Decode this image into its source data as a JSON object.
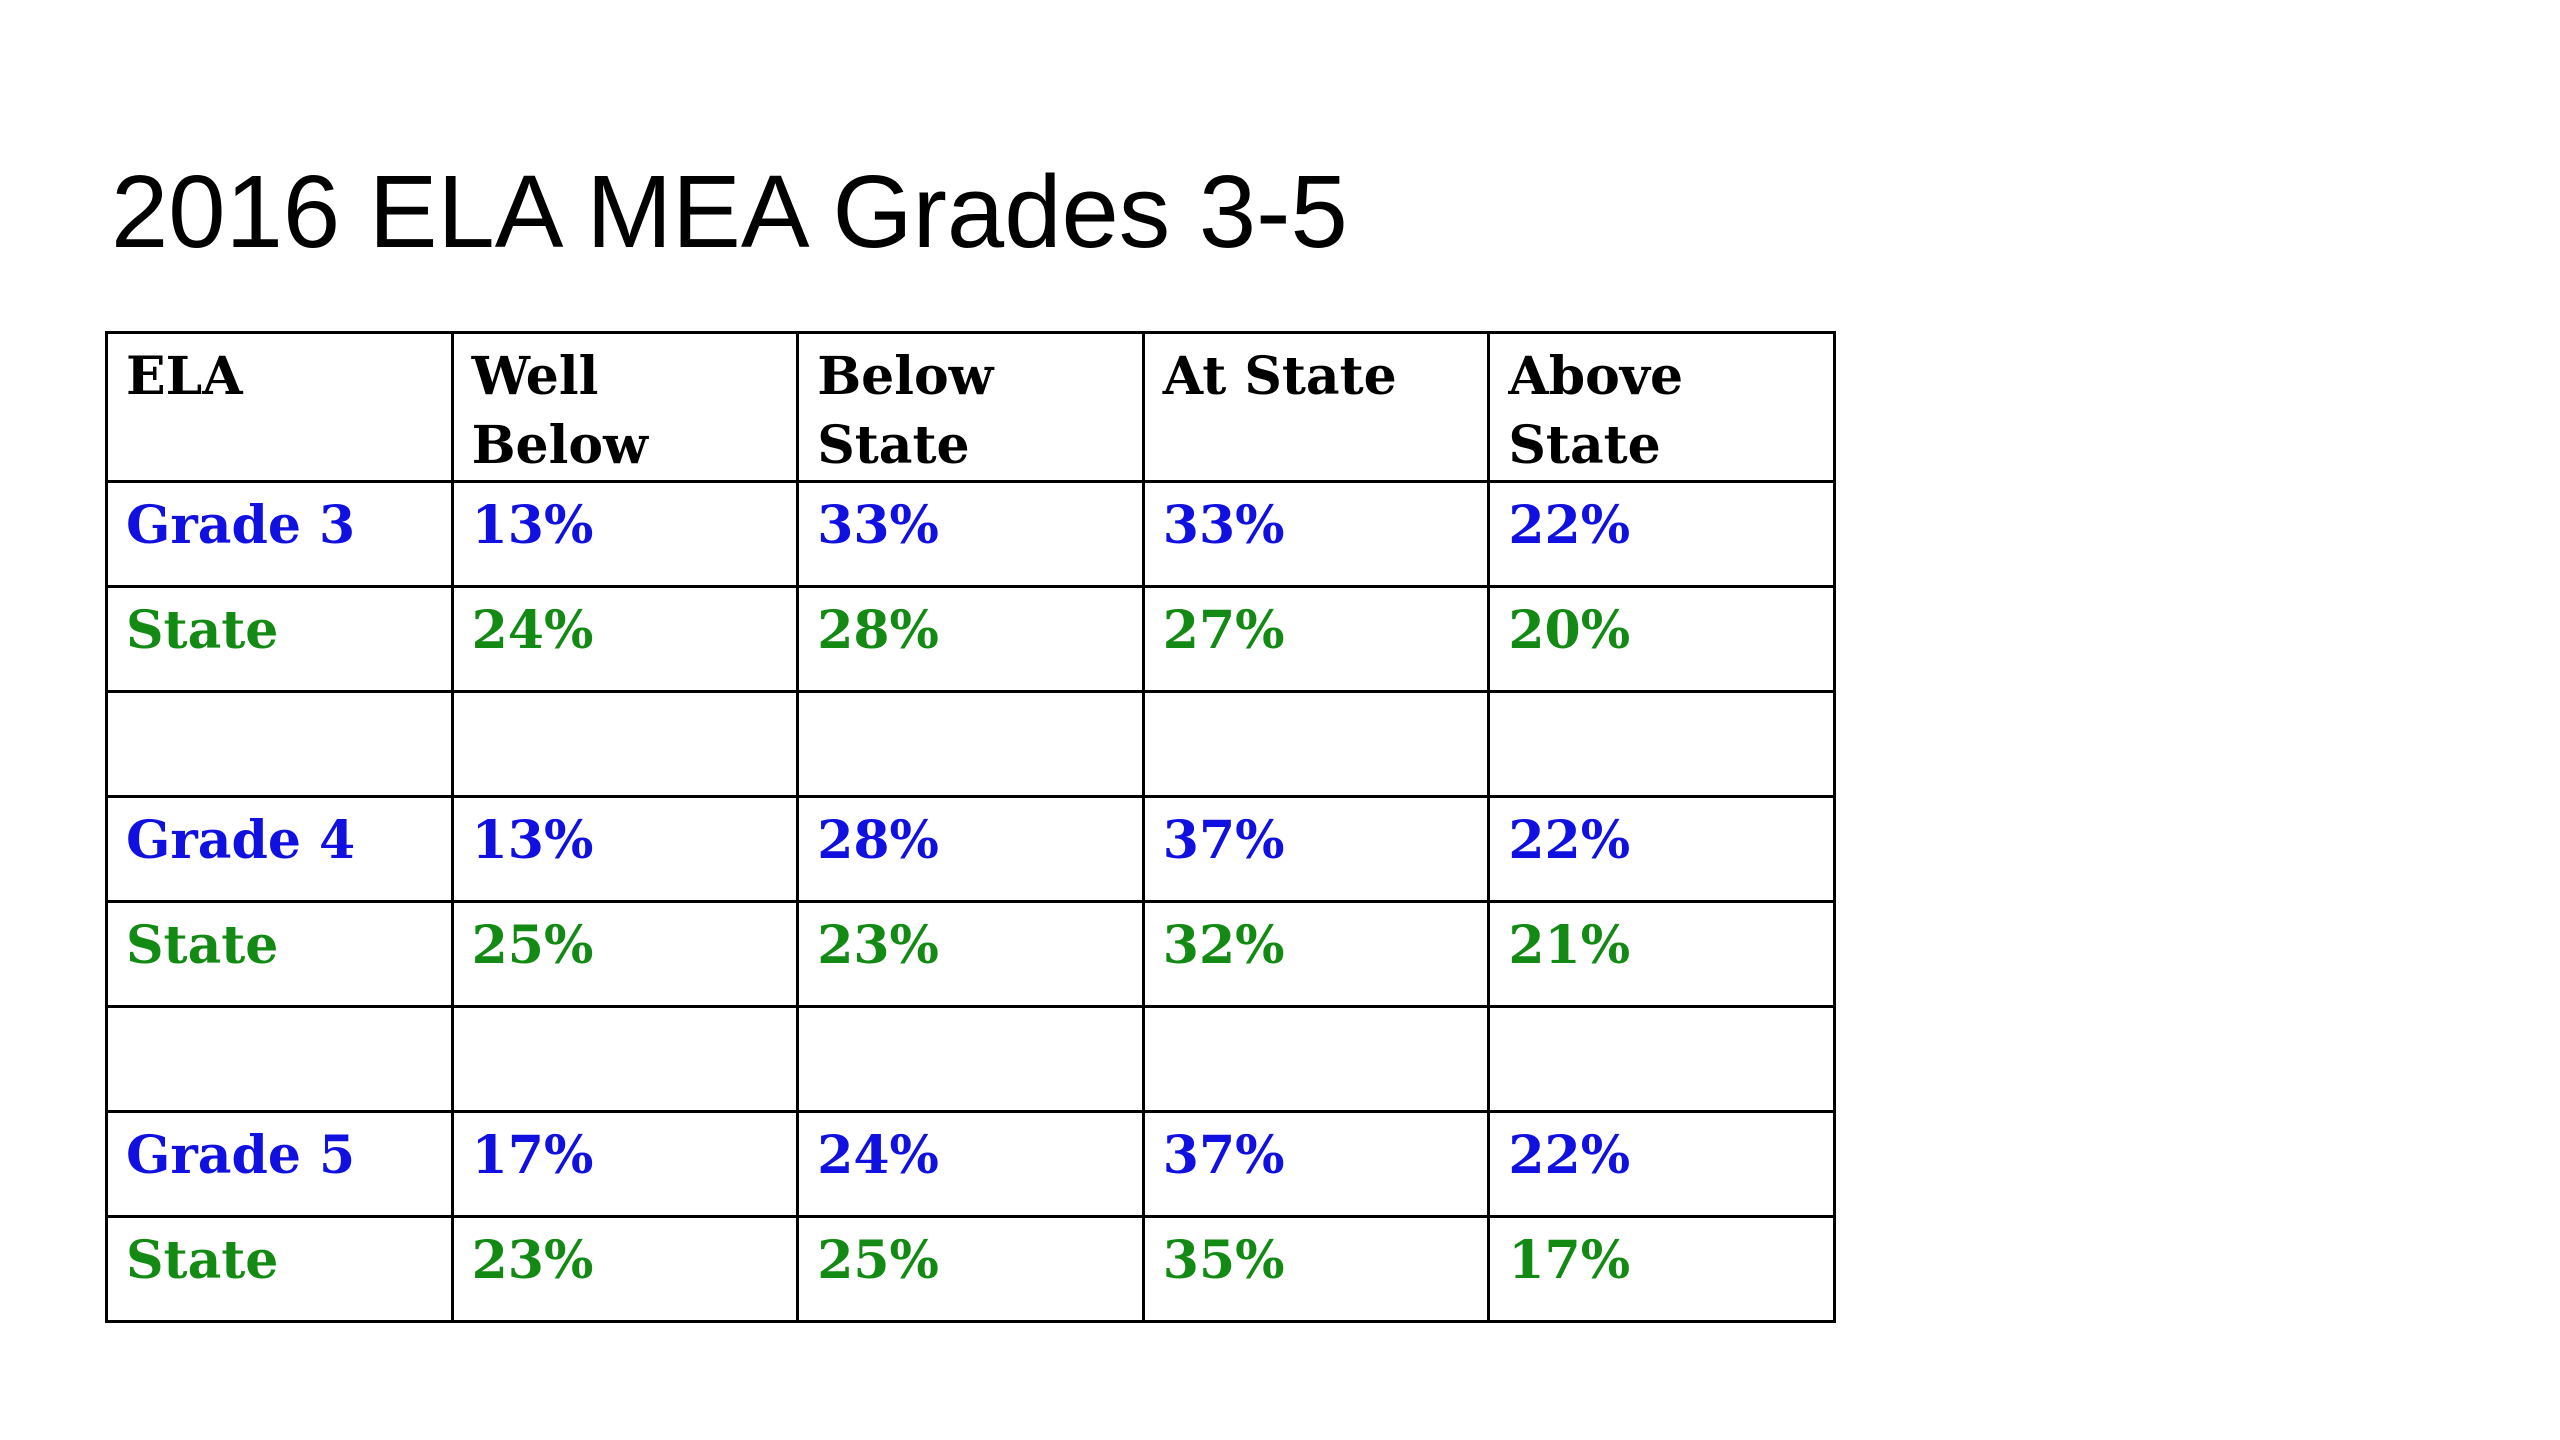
{
  "slide": {
    "title": "2016 ELA MEA Grades 3-5"
  },
  "colors": {
    "grade_text": "#1010e0",
    "state_text": "#138a13",
    "header_text": "#000000",
    "border": "#000000"
  },
  "table": {
    "headers": [
      "ELA",
      "Well Below",
      "Below State",
      "At State",
      "Above State"
    ],
    "rows": [
      {
        "type": "grade",
        "cells": [
          "Grade 3",
          "13%",
          "33%",
          "33%",
          "22%"
        ]
      },
      {
        "type": "state",
        "cells": [
          "State",
          "24%",
          "28%",
          "27%",
          "20%"
        ]
      },
      {
        "type": "blank",
        "cells": [
          "",
          "",
          "",
          "",
          ""
        ]
      },
      {
        "type": "grade",
        "cells": [
          "Grade 4",
          "13%",
          "28%",
          "37%",
          "22%"
        ]
      },
      {
        "type": "state",
        "cells": [
          "State",
          "25%",
          "23%",
          "32%",
          "21%"
        ]
      },
      {
        "type": "blank",
        "cells": [
          "",
          "",
          "",
          "",
          ""
        ]
      },
      {
        "type": "grade",
        "cells": [
          "Grade 5",
          "17%",
          "24%",
          "37%",
          "22%"
        ]
      },
      {
        "type": "state",
        "cells": [
          "State",
          "23%",
          "25%",
          "35%",
          "17%"
        ]
      }
    ]
  }
}
